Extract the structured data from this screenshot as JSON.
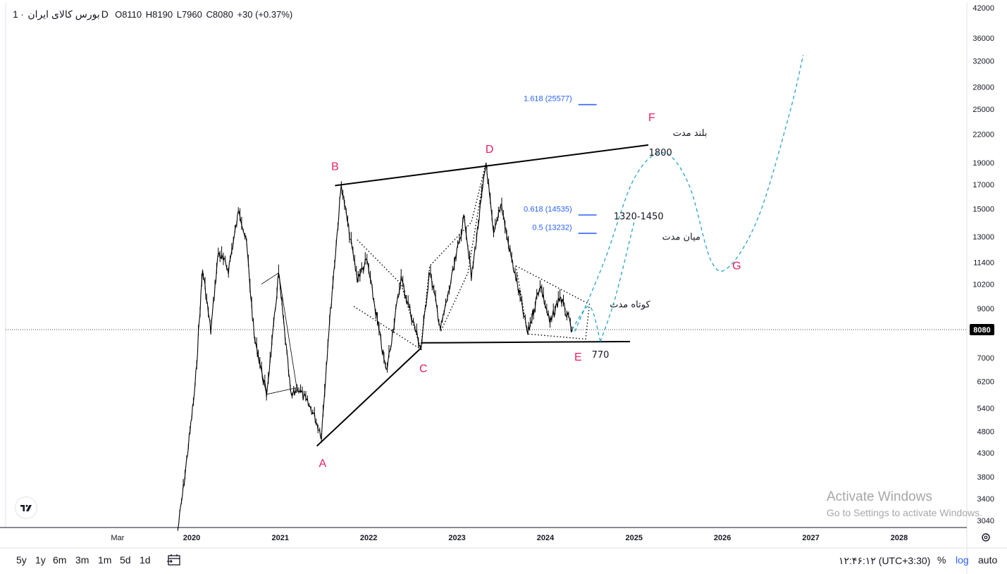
{
  "legend": {
    "symbol": "بورس کالای ایران",
    "separator": "·",
    "interval": "1D",
    "open": "O8110",
    "high": "H8190",
    "low": "L7960",
    "close": "C8080",
    "change": "+30 (+0.37%)"
  },
  "colors": {
    "candle": "#000000",
    "wave_label": "#e91e63",
    "fib": "#2962ff",
    "projection": "#26a5c6",
    "price_tag_bg": "#000000"
  },
  "chart_data": {
    "type": "line",
    "title": "",
    "scale": "log",
    "yaxis_ticks": [
      42000,
      36000,
      32000,
      28000,
      25000,
      22000,
      19000,
      17000,
      15000,
      13000,
      11400,
      10200,
      9000,
      8080,
      7000,
      6200,
      5400,
      4800,
      4300,
      3800,
      3400,
      3040
    ],
    "xaxis_ticks": [
      "Mar",
      "2020",
      "2021",
      "2022",
      "2023",
      "2024",
      "2025",
      "2026",
      "2027",
      "2028"
    ],
    "current_price": "8080",
    "price_series": [
      {
        "date": "2019-11-05",
        "value": 2900
      },
      {
        "date": "2019-12-01",
        "value": 3700
      },
      {
        "date": "2020-01-15",
        "value": 6000
      },
      {
        "date": "2020-02-15",
        "value": 11000
      },
      {
        "date": "2020-03-20",
        "value": 8000
      },
      {
        "date": "2020-04-20",
        "value": 12000
      },
      {
        "date": "2020-06-01",
        "value": 11000
      },
      {
        "date": "2020-07-15",
        "value": 15000
      },
      {
        "date": "2020-08-15",
        "value": 12500
      },
      {
        "date": "2020-09-15",
        "value": 7800
      },
      {
        "date": "2020-11-05",
        "value": 5800
      },
      {
        "date": "2020-12-01",
        "value": 7800
      },
      {
        "date": "2020-12-25",
        "value": 10800
      },
      {
        "date": "2021-02-15",
        "value": 5700
      },
      {
        "date": "2021-03-15",
        "value": 6000
      },
      {
        "date": "2021-05-15",
        "value": 5300
      },
      {
        "date": "2021-06-20",
        "value": 4700
      },
      {
        "date": "2021-07-20",
        "value": 8000
      },
      {
        "date": "2021-09-10",
        "value": 17000
      },
      {
        "date": "2021-10-10",
        "value": 13500
      },
      {
        "date": "2021-11-15",
        "value": 10500
      },
      {
        "date": "2021-12-25",
        "value": 11500
      },
      {
        "date": "2022-02-20",
        "value": 7600
      },
      {
        "date": "2022-03-15",
        "value": 6500
      },
      {
        "date": "2022-05-15",
        "value": 10500
      },
      {
        "date": "2022-07-01",
        "value": 8500
      },
      {
        "date": "2022-08-05",
        "value": 7300
      },
      {
        "date": "2022-09-10",
        "value": 11000
      },
      {
        "date": "2022-10-25",
        "value": 8100
      },
      {
        "date": "2022-12-10",
        "value": 10500
      },
      {
        "date": "2023-02-01",
        "value": 14500
      },
      {
        "date": "2023-03-01",
        "value": 10500
      },
      {
        "date": "2023-05-01",
        "value": 19000
      },
      {
        "date": "2023-06-01",
        "value": 13000
      },
      {
        "date": "2023-07-01",
        "value": 15500
      },
      {
        "date": "2023-08-01",
        "value": 12500
      },
      {
        "date": "2023-09-01",
        "value": 10500
      },
      {
        "date": "2023-10-20",
        "value": 7900
      },
      {
        "date": "2023-12-10",
        "value": 10200
      },
      {
        "date": "2024-01-20",
        "value": 8300
      },
      {
        "date": "2024-03-01",
        "value": 9600
      },
      {
        "date": "2024-04-20",
        "value": 8080
      }
    ],
    "wave_labels": [
      {
        "label": "A",
        "date": "2021-06-25",
        "value": 4000
      },
      {
        "label": "B",
        "date": "2021-08-15",
        "value": 18300
      },
      {
        "label": "C",
        "date": "2022-08-15",
        "value": 6500
      },
      {
        "label": "D",
        "date": "2023-05-15",
        "value": 20000
      },
      {
        "label": "E",
        "date": "2024-05-15",
        "value": 6900
      },
      {
        "label": "F",
        "date": "2025-03-15",
        "value": 23500
      },
      {
        "label": "G",
        "date": "2026-03-01",
        "value": 11000
      }
    ],
    "trendlines": [
      {
        "style": "solid",
        "from": {
          "date": "2021-06-01",
          "value": 4450
        },
        "to": {
          "date": "2022-08-05",
          "value": 7350
        }
      },
      {
        "style": "solid",
        "from": {
          "date": "2022-08-05",
          "value": 7550
        },
        "to": {
          "date": "2024-12-15",
          "value": 7600
        }
      },
      {
        "style": "solid",
        "from": {
          "date": "2021-08-15",
          "value": 16900
        },
        "to": {
          "date": "2025-03-01",
          "value": 20800
        }
      }
    ],
    "fib_levels": [
      {
        "label": "1.618 (25577)",
        "value": 25577
      },
      {
        "label": "0.618 (14535)",
        "value": 14535
      },
      {
        "label": "0.5 (13232)",
        "value": 13232
      }
    ],
    "projections": [
      {
        "name": "کوتاه مدت",
        "points": [
          {
            "date": "2024-04-20",
            "value": 8080
          },
          {
            "date": "2024-07-01",
            "value": 9100
          },
          {
            "date": "2024-08-15",
            "value": 7600
          }
        ]
      },
      {
        "name": "میان مدت",
        "points": [
          {
            "date": "2024-08-15",
            "value": 7600
          },
          {
            "date": "2024-10-15",
            "value": 9500
          },
          {
            "date": "2025-01-01",
            "value": 14000
          }
        ]
      },
      {
        "name": "بلند مدت",
        "points": [
          {
            "date": "2024-05-01",
            "value": 8000
          },
          {
            "date": "2024-09-01",
            "value": 11500
          },
          {
            "date": "2025-01-01",
            "value": 17500
          },
          {
            "date": "2025-05-01",
            "value": 20000
          },
          {
            "date": "2025-08-15",
            "value": 17000
          },
          {
            "date": "2025-11-15",
            "value": 11500
          },
          {
            "date": "2026-02-01",
            "value": 11200
          },
          {
            "date": "2026-06-01",
            "value": 14500
          },
          {
            "date": "2026-10-01",
            "value": 24000
          },
          {
            "date": "2026-12-01",
            "value": 33000
          }
        ]
      }
    ],
    "annotations": {
      "long_term": "بلند مدت",
      "mid_term": "میان مدت",
      "short_term": "کوتاه مدت",
      "target_high": "1800",
      "target_mid": "1320-1450",
      "support": "770"
    }
  },
  "timeframes": [
    "5y",
    "1y",
    "6m",
    "3m",
    "1m",
    "5d",
    "1d"
  ],
  "clock": "۱۲:۴۶:۱۲ (UTC+3:30)",
  "scale_controls": {
    "percent": "%",
    "log": "log",
    "auto": "auto"
  },
  "watermark": {
    "line1": "Activate Windows",
    "line2": "Go to Settings to activate Windows."
  }
}
